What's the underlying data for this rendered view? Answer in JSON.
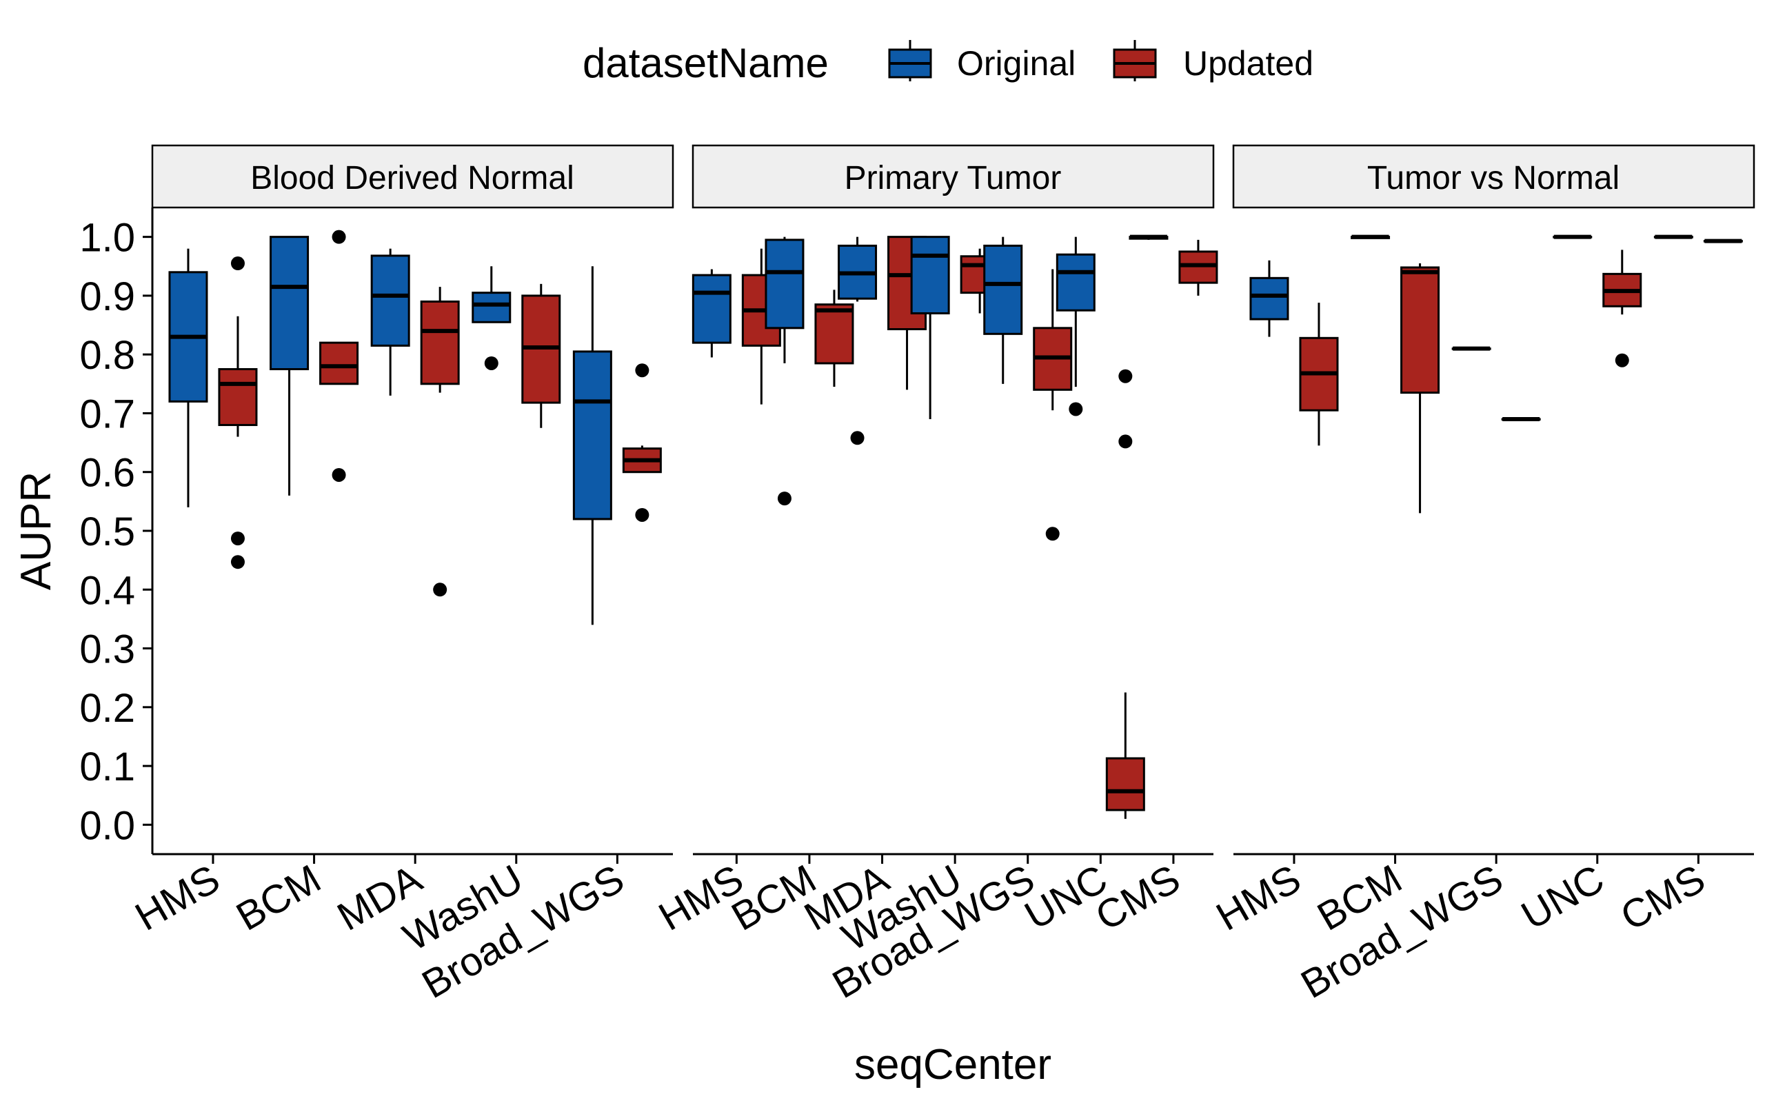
{
  "chart_data": {
    "type": "boxplot",
    "ylabel": "AUPR",
    "xlabel": "seqCenter",
    "ylim": [
      -0.05,
      1.05
    ],
    "yticks": [
      0.0,
      0.1,
      0.2,
      0.3,
      0.4,
      0.5,
      0.6,
      0.7,
      0.8,
      0.9,
      1.0
    ],
    "ytick_labels": [
      "0.0",
      "0.1",
      "0.2",
      "0.3",
      "0.4",
      "0.5",
      "0.6",
      "0.7",
      "0.8",
      "0.9",
      "1.0"
    ],
    "legend": {
      "title": "datasetName",
      "position": "top",
      "entries": [
        {
          "name": "Original",
          "color": "#0d5aa8"
        },
        {
          "name": "Updated",
          "color": "#a8241e"
        }
      ]
    },
    "grid": false,
    "facets": [
      {
        "title": "Blood Derived Normal",
        "categories": [
          "HMS",
          "BCM",
          "MDA",
          "WashU",
          "Broad_WGS"
        ],
        "groups": [
          {
            "category": "HMS",
            "original": {
              "min": 0.54,
              "q1": 0.72,
              "median": 0.83,
              "q3": 0.94,
              "max": 0.98,
              "outliers": []
            },
            "updated": {
              "min": 0.66,
              "q1": 0.68,
              "median": 0.75,
              "q3": 0.775,
              "max": 0.865,
              "outliers": [
                0.955,
                0.487,
                0.447
              ]
            }
          },
          {
            "category": "BCM",
            "original": {
              "min": 0.56,
              "q1": 0.775,
              "median": 0.915,
              "q3": 1.0,
              "max": 1.0,
              "outliers": []
            },
            "updated": {
              "min": 0.75,
              "q1": 0.75,
              "median": 0.78,
              "q3": 0.82,
              "max": 0.82,
              "outliers": [
                1.0,
                0.595
              ]
            }
          },
          {
            "category": "MDA",
            "original": {
              "min": 0.73,
              "q1": 0.815,
              "median": 0.9,
              "q3": 0.968,
              "max": 0.98,
              "outliers": []
            },
            "updated": {
              "min": 0.735,
              "q1": 0.75,
              "median": 0.84,
              "q3": 0.89,
              "max": 0.915,
              "outliers": [
                0.4
              ]
            }
          },
          {
            "category": "WashU",
            "original": {
              "min": 0.855,
              "q1": 0.855,
              "median": 0.885,
              "q3": 0.905,
              "max": 0.95,
              "outliers": [
                0.785
              ]
            }
          },
          {
            "category": "WashU",
            "updated": {
              "min": 0.675,
              "q1": 0.718,
              "median": 0.812,
              "q3": 0.9,
              "max": 0.92,
              "outliers": []
            }
          },
          {
            "category": "Broad_WGS",
            "original": {
              "min": 0.34,
              "q1": 0.52,
              "median": 0.72,
              "q3": 0.805,
              "max": 0.95,
              "outliers": []
            },
            "updated": {
              "min": 0.6,
              "q1": 0.6,
              "median": 0.62,
              "q3": 0.64,
              "max": 0.645,
              "outliers": [
                0.773,
                0.527
              ]
            }
          }
        ]
      },
      {
        "title": "Primary Tumor",
        "categories": [
          "HMS",
          "BCM",
          "MDA",
          "WashU",
          "Broad_WGS",
          "UNC",
          "CMS"
        ],
        "groups": [
          {
            "category": "HMS",
            "original": {
              "min": 0.795,
              "q1": 0.82,
              "median": 0.905,
              "q3": 0.935,
              "max": 0.945,
              "outliers": []
            },
            "updated": {
              "min": 0.715,
              "q1": 0.815,
              "median": 0.875,
              "q3": 0.935,
              "max": 0.98,
              "outliers": []
            }
          },
          {
            "category": "BCM",
            "original": {
              "min": 0.785,
              "q1": 0.845,
              "median": 0.94,
              "q3": 0.995,
              "max": 1.0,
              "outliers": [
                0.555
              ]
            },
            "updated": {
              "min": 0.745,
              "q1": 0.785,
              "median": 0.875,
              "q3": 0.885,
              "max": 0.91,
              "outliers": []
            }
          },
          {
            "category": "MDA",
            "original": {
              "min": 0.89,
              "q1": 0.895,
              "median": 0.938,
              "q3": 0.985,
              "max": 1.0,
              "outliers": [
                0.658
              ]
            },
            "updated": {
              "min": 0.74,
              "q1": 0.843,
              "median": 0.935,
              "q3": 1.0,
              "max": 1.0,
              "outliers": []
            }
          },
          {
            "category": "WashU",
            "original": {
              "min": 0.69,
              "q1": 0.87,
              "median": 0.968,
              "q3": 1.0,
              "max": 1.0,
              "outliers": []
            },
            "updated": {
              "min": 0.87,
              "q1": 0.905,
              "median": 0.952,
              "q3": 0.967,
              "max": 0.98,
              "outliers": []
            }
          },
          {
            "category": "Broad_WGS",
            "original": {
              "min": 0.75,
              "q1": 0.835,
              "median": 0.92,
              "q3": 0.985,
              "max": 1.0,
              "outliers": []
            },
            "updated": {
              "min": 0.705,
              "q1": 0.74,
              "median": 0.795,
              "q3": 0.845,
              "max": 0.945,
              "outliers": [
                0.495
              ]
            }
          },
          {
            "category": "UNC",
            "original": {
              "min": 0.745,
              "q1": 0.875,
              "median": 0.94,
              "q3": 0.97,
              "max": 1.0,
              "outliers": [
                0.707
              ]
            },
            "updated": {
              "min": 0.01,
              "q1": 0.025,
              "median": 0.057,
              "q3": 0.113,
              "max": 0.225,
              "outliers": [
                0.763,
                0.652
              ]
            }
          },
          {
            "category": "CMS",
            "original": {
              "min": 0.995,
              "q1": 0.997,
              "median": 1.0,
              "q3": 1.0,
              "max": 1.0,
              "outliers": []
            },
            "updated": {
              "min": 0.9,
              "q1": 0.922,
              "median": 0.952,
              "q3": 0.975,
              "max": 0.995,
              "outliers": []
            }
          }
        ]
      },
      {
        "title": "Tumor vs Normal",
        "categories": [
          "HMS",
          "BCM",
          "Broad_WGS",
          "UNC",
          "CMS"
        ],
        "groups": [
          {
            "category": "HMS",
            "original": {
              "min": 0.83,
              "q1": 0.86,
              "median": 0.9,
              "q3": 0.93,
              "max": 0.96,
              "outliers": []
            },
            "updated": {
              "min": 0.645,
              "q1": 0.705,
              "median": 0.768,
              "q3": 0.828,
              "max": 0.888,
              "outliers": []
            }
          },
          {
            "category": "BCM",
            "original": {
              "min": 0.998,
              "q1": 0.998,
              "median": 1.0,
              "q3": 1.0,
              "max": 1.0,
              "outliers": []
            },
            "updated": {
              "min": 0.53,
              "q1": 0.735,
              "median": 0.94,
              "q3": 0.948,
              "max": 0.955,
              "outliers": []
            }
          },
          {
            "category": "Broad_WGS",
            "original": {
              "min": 0.81,
              "q1": 0.81,
              "median": 0.81,
              "q3": 0.81,
              "max": 0.81,
              "outliers": []
            },
            "updated": {
              "min": 0.69,
              "q1": 0.69,
              "median": 0.69,
              "q3": 0.69,
              "max": 0.69,
              "outliers": []
            }
          },
          {
            "category": "UNC",
            "original": {
              "min": 1.0,
              "q1": 1.0,
              "median": 1.0,
              "q3": 1.0,
              "max": 1.0,
              "outliers": []
            },
            "updated": {
              "min": 0.868,
              "q1": 0.882,
              "median": 0.908,
              "q3": 0.937,
              "max": 0.978,
              "outliers": [
                0.79
              ]
            }
          },
          {
            "category": "CMS",
            "original": {
              "min": 1.0,
              "q1": 1.0,
              "median": 1.0,
              "q3": 1.0,
              "max": 1.0,
              "outliers": []
            },
            "updated": {
              "min": 0.993,
              "q1": 0.993,
              "median": 0.993,
              "q3": 0.993,
              "max": 0.993,
              "outliers": []
            }
          }
        ]
      }
    ]
  }
}
